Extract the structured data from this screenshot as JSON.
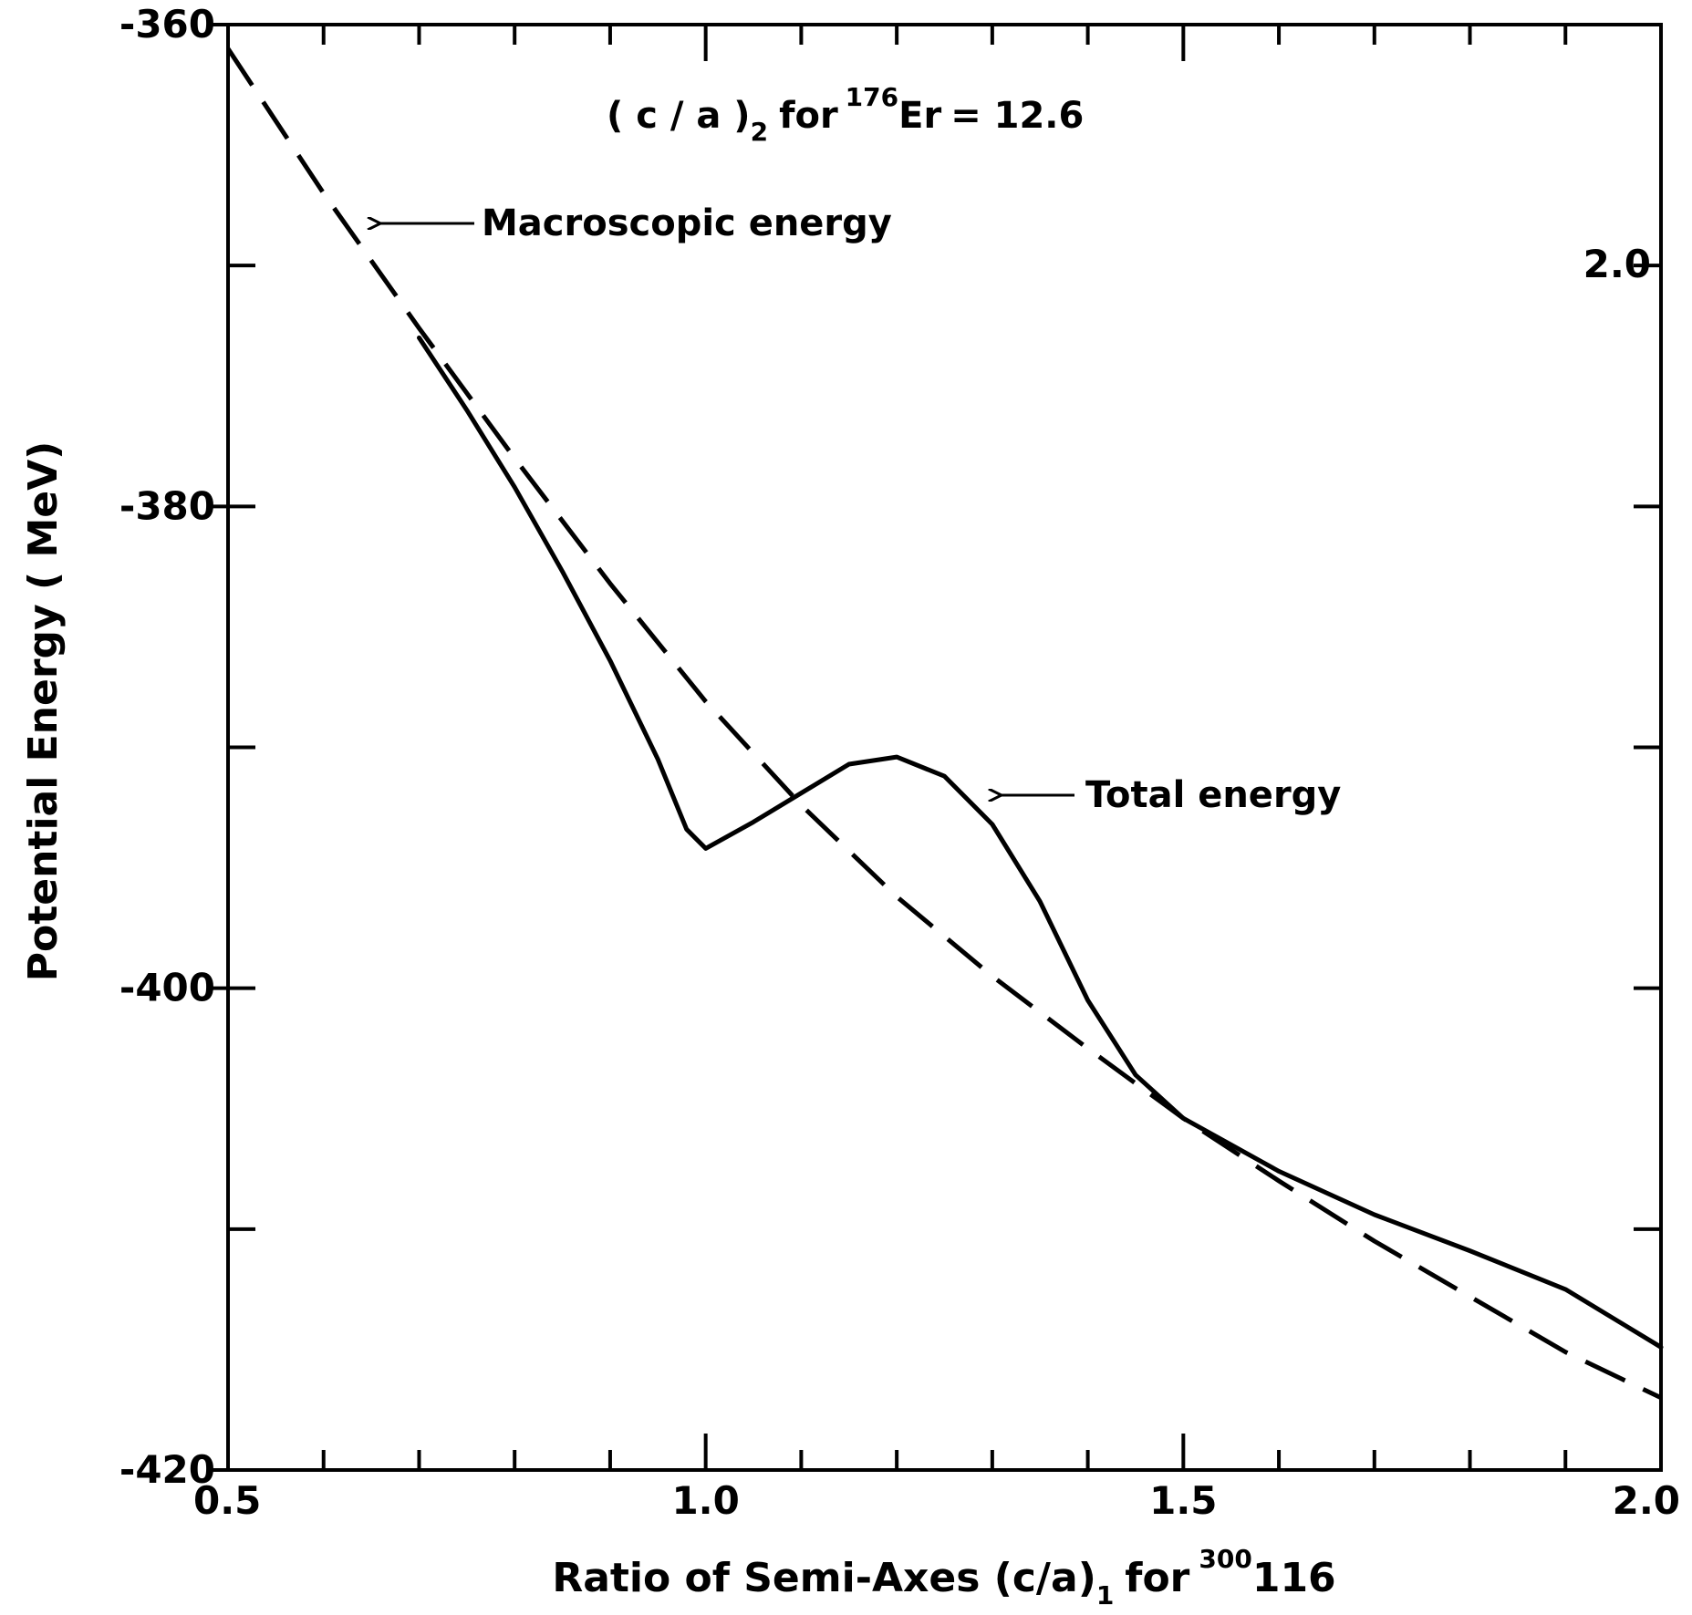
{
  "chart_data": {
    "type": "line",
    "title": "",
    "xlabel": {
      "main": "Ratio of Semi-Axes (c/a)",
      "subscript": "1",
      "for_text": "for",
      "mass_number": "300",
      "element": "116"
    },
    "ylabel": "Potential Energy ( MeV)",
    "xlim": [
      0.5,
      2.0
    ],
    "ylim": [
      -420,
      -360
    ],
    "x_tick_labels": [
      "0.5",
      "1.0",
      "1.5",
      "2.0"
    ],
    "x_tick_values": [
      0.5,
      1.0,
      1.5,
      2.0
    ],
    "x_minor_ticks": [
      0.6,
      0.7,
      0.8,
      0.9,
      1.1,
      1.2,
      1.3,
      1.4,
      1.6,
      1.7,
      1.8,
      1.9
    ],
    "y_tick_labels": [
      "-360",
      "-380",
      "-400",
      "-420"
    ],
    "y_tick_values": [
      -360,
      -380,
      -400,
      -420
    ],
    "y_minor_ticks": [
      -370,
      -390,
      -410
    ],
    "right_y_labels": [
      "2.0"
    ],
    "grid": false,
    "header_annotation": {
      "prefix": "( c / a )",
      "subscript": "2",
      "for_text": "for",
      "mass_number": "176",
      "element": "Er",
      "value": "= 12.6"
    },
    "series": [
      {
        "name": "Macroscopic energy",
        "style": "dashed",
        "x": [
          0.5,
          0.6,
          0.7,
          0.8,
          0.9,
          1.0,
          1.1,
          1.2,
          1.3,
          1.4,
          1.5,
          1.6,
          1.7,
          1.8,
          1.9,
          2.0
        ],
        "y": [
          -361.0,
          -367.0,
          -372.6,
          -378.0,
          -383.2,
          -388.1,
          -392.4,
          -396.2,
          -399.5,
          -402.5,
          -405.4,
          -408.0,
          -410.5,
          -412.8,
          -415.1,
          -417.0
        ]
      },
      {
        "name": "Total energy",
        "style": "solid",
        "x": [
          0.7,
          0.75,
          0.8,
          0.85,
          0.9,
          0.95,
          0.98,
          1.0,
          1.05,
          1.1,
          1.15,
          1.2,
          1.25,
          1.3,
          1.35,
          1.4,
          1.45,
          1.5,
          1.6,
          1.7,
          1.8,
          1.9,
          2.0
        ],
        "y": [
          -373.0,
          -376.0,
          -379.2,
          -382.7,
          -386.4,
          -390.5,
          -393.4,
          -394.2,
          -393.1,
          -391.9,
          -390.7,
          -390.4,
          -391.2,
          -393.2,
          -396.4,
          -400.5,
          -403.6,
          -405.4,
          -407.6,
          -409.4,
          -410.9,
          -412.5,
          -414.9
        ]
      }
    ],
    "annotations": [
      {
        "text": "Macroscopic energy",
        "points_to": {
          "x": 0.65,
          "y": -368.5
        }
      },
      {
        "text": "Total energy",
        "points_to": {
          "x": 1.3,
          "y": -390.5
        }
      }
    ]
  }
}
